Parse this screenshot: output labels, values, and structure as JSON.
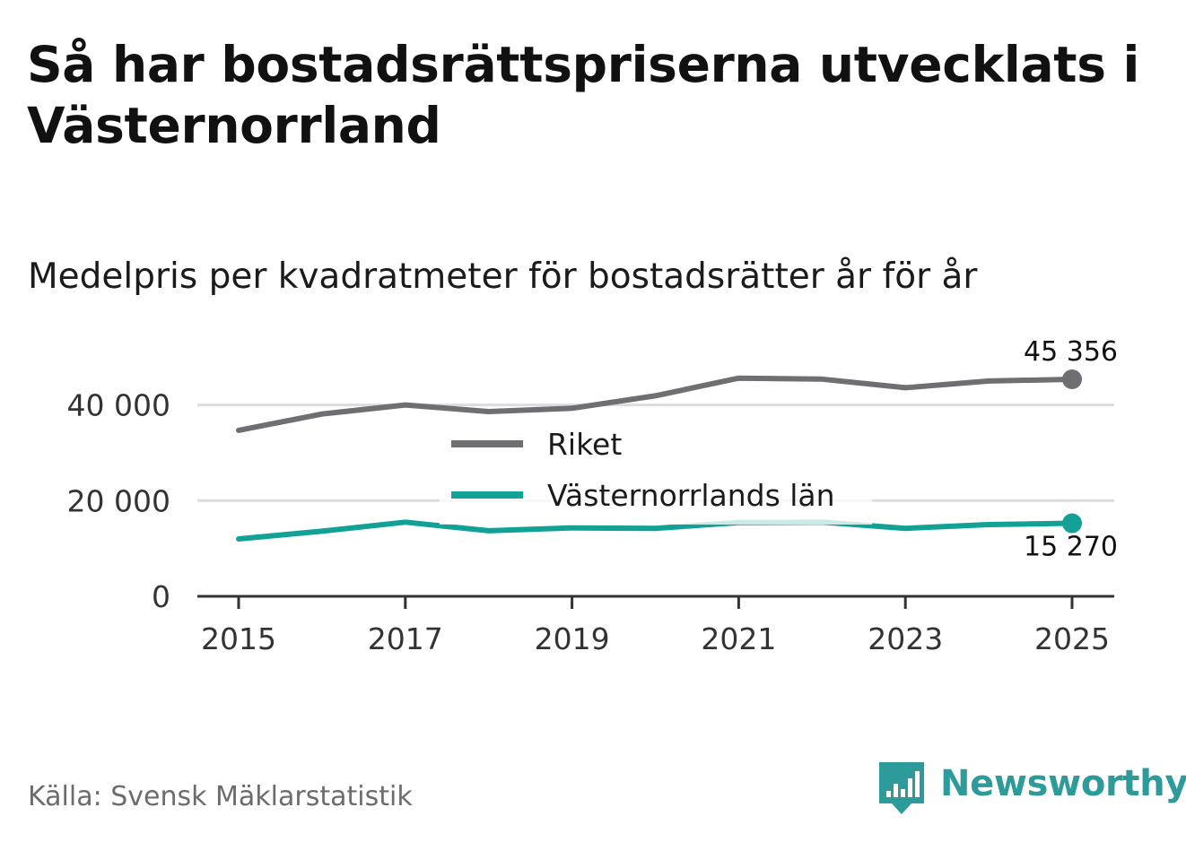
{
  "title": "Så har bostadsrättspriserna utvecklats i Västernorrland",
  "subtitle": "Medelpris per kvadratmeter för bostadsrätter år för år",
  "source": "Källa: Svensk Mäklarstatistik",
  "brand": {
    "name": "Newsworthy",
    "color": "#2e9b9b"
  },
  "chart_data": {
    "type": "line",
    "title": "Så har bostadsrättspriserna utvecklats i Västernorrland",
    "subtitle": "Medelpris per kvadratmeter för bostadsrätter år för år",
    "xlabel": "",
    "ylabel": "",
    "x": [
      2015,
      2016,
      2017,
      2018,
      2019,
      2020,
      2021,
      2022,
      2023,
      2024,
      2025
    ],
    "xlim": [
      2015,
      2025
    ],
    "ylim": [
      0,
      45356
    ],
    "grid": true,
    "legend": "center",
    "xticks": [
      2015,
      2017,
      2019,
      2021,
      2023,
      2025
    ],
    "xtick_labels": [
      "2015",
      "2017",
      "2019",
      "2021",
      "2023",
      "2025"
    ],
    "yticks": [
      0,
      20000,
      40000
    ],
    "ytick_labels": [
      "0",
      "20 000",
      "40 000"
    ],
    "series": [
      {
        "name": "Riket",
        "color": "#6e6e73",
        "values": [
          34700,
          38100,
          40000,
          38600,
          39300,
          41900,
          45600,
          45400,
          43600,
          45000,
          45356
        ],
        "end_label": "45 356"
      },
      {
        "name": "Västernorrlands län",
        "color": "#11a197",
        "values": [
          12000,
          13600,
          15500,
          13700,
          14300,
          14200,
          15400,
          15500,
          14200,
          15000,
          15270
        ],
        "end_label": "15 270"
      }
    ]
  }
}
